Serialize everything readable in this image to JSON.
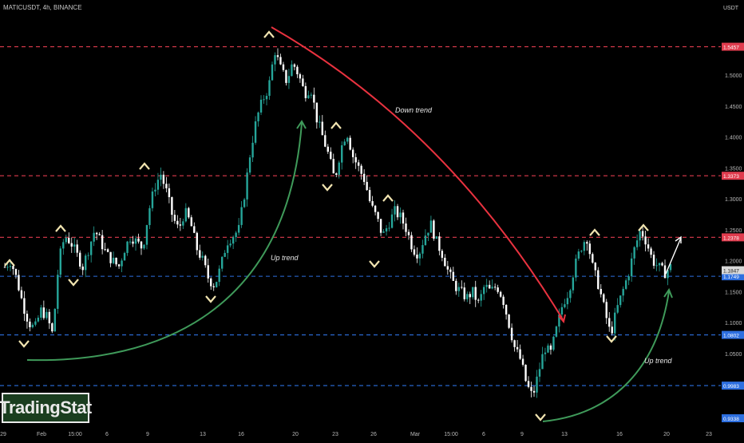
{
  "header": {
    "title": "MATICUSDT, 4h, BINANCE"
  },
  "price_axis": {
    "currency_label": "USDT"
  },
  "logo": {
    "text": "TradingStat"
  },
  "colors": {
    "background": "#000000",
    "up_candle": "#26a69a",
    "down_candle": "#ffffff",
    "red_level": "#e03c4e",
    "blue_level": "#2d6fe0",
    "down_trend": "#e8323f",
    "up_trend": "#3f9a5a",
    "marker": "#f1e4b0",
    "logo_bg": "#1a3d1f"
  },
  "chart_data": {
    "type": "candlestick",
    "title": "MATICUSDT, 4h, BINANCE",
    "ylim": [
      0.9338,
      1.59
    ],
    "y_ticks": [
      1.05,
      1.1,
      1.15,
      1.2,
      1.25,
      1.3,
      1.35,
      1.4,
      1.45,
      1.5
    ],
    "x_ticks": [
      "29",
      "Feb",
      "15:00",
      "6",
      "9",
      "13",
      "16",
      "20",
      "23",
      "26",
      "Mar",
      "15:00",
      "6",
      "9",
      "13",
      "16",
      "20",
      "23"
    ],
    "levels": [
      {
        "value": 1.5457,
        "label": "1.5457",
        "color": "red"
      },
      {
        "value": 1.3373,
        "label": "1.3373",
        "color": "red"
      },
      {
        "value": 1.2378,
        "label": "1.2378",
        "color": "red"
      },
      {
        "value": 1.1749,
        "label": "1.1749",
        "color": "blue"
      },
      {
        "value": 1.0802,
        "label": "1.0802",
        "color": "blue"
      },
      {
        "value": 0.9983,
        "label": "0.9983",
        "color": "blue"
      }
    ],
    "last_price_label": "1.1847",
    "bottom_label": "0.9338",
    "annotations": [
      {
        "text": "Down trend"
      },
      {
        "text": "Up trend"
      },
      {
        "text": "Up trend"
      }
    ],
    "price_path": [
      1.19,
      1.2,
      1.17,
      1.13,
      1.1,
      1.09,
      1.12,
      1.11,
      1.08,
      1.2,
      1.24,
      1.23,
      1.21,
      1.19,
      1.22,
      1.25,
      1.23,
      1.21,
      1.2,
      1.19,
      1.22,
      1.24,
      1.23,
      1.22,
      1.28,
      1.32,
      1.34,
      1.31,
      1.27,
      1.25,
      1.28,
      1.26,
      1.22,
      1.2,
      1.17,
      1.16,
      1.19,
      1.23,
      1.24,
      1.25,
      1.31,
      1.38,
      1.43,
      1.46,
      1.48,
      1.54,
      1.51,
      1.49,
      1.52,
      1.5,
      1.47,
      1.48,
      1.43,
      1.4,
      1.37,
      1.33,
      1.38,
      1.41,
      1.37,
      1.35,
      1.33,
      1.29,
      1.27,
      1.24,
      1.26,
      1.28,
      1.27,
      1.25,
      1.22,
      1.21,
      1.24,
      1.26,
      1.23,
      1.21,
      1.18,
      1.16,
      1.15,
      1.14,
      1.15,
      1.13,
      1.16,
      1.15,
      1.16,
      1.14,
      1.1,
      1.06,
      1.04,
      1.0,
      0.98,
      1.02,
      1.06,
      1.05,
      1.09,
      1.13,
      1.15,
      1.19,
      1.22,
      1.24,
      1.19,
      1.16,
      1.12,
      1.08,
      1.12,
      1.15,
      1.18,
      1.22,
      1.25,
      1.23,
      1.2,
      1.19,
      1.18,
      1.19
    ]
  }
}
